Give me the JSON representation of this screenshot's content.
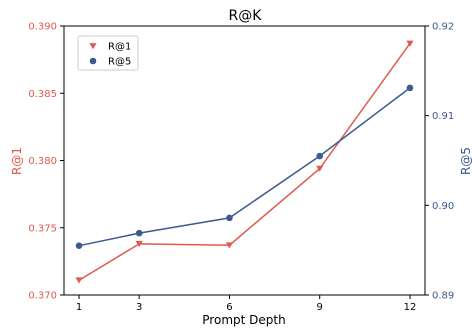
{
  "chart_data": {
    "type": "line",
    "title": "R@K",
    "xlabel": "Prompt Depth",
    "categories": [
      "1",
      "3",
      "6",
      "9",
      "12"
    ],
    "x": [
      1,
      3,
      6,
      9,
      12
    ],
    "series": [
      {
        "name": "R@1",
        "axis": "left",
        "marker": "triangle-down",
        "color": "#e05a4e",
        "values": [
          0.3711,
          0.3738,
          0.3737,
          0.3794,
          0.3887
        ]
      },
      {
        "name": "R@5",
        "axis": "right",
        "marker": "circle",
        "color": "#3d5a8f",
        "values": [
          0.8955,
          0.8969,
          0.8986,
          0.9055,
          0.9131
        ]
      }
    ],
    "y_left": {
      "label": "R@1",
      "color": "#e05a4e",
      "lim": [
        0.37,
        0.39
      ],
      "ticks": [
        0.37,
        0.375,
        0.38,
        0.385,
        0.39
      ],
      "tick_labels": [
        "0.370",
        "0.375",
        "0.380",
        "0.385",
        "0.390"
      ]
    },
    "y_right": {
      "label": "R@5",
      "color": "#3d5a8f",
      "lim": [
        0.89,
        0.92
      ],
      "ticks": [
        0.89,
        0.9,
        0.91,
        0.92
      ],
      "tick_labels": [
        "0.89",
        "0.90",
        "0.91",
        "0.92"
      ]
    },
    "x_ticks": [
      1,
      3,
      6,
      9,
      12
    ],
    "xlim": [
      0.5,
      12.5
    ],
    "grid": false,
    "legend_position": "upper-left"
  }
}
